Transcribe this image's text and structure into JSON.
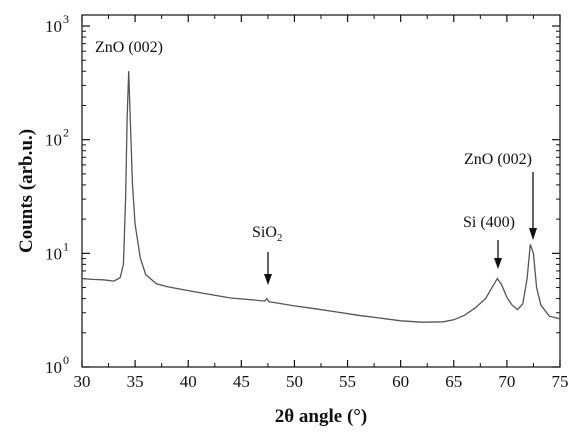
{
  "chart_data": {
    "type": "line",
    "title": "",
    "xlabel": "2θ angle (°)",
    "ylabel": "Counts (arb.u.)",
    "xlim": [
      30,
      75
    ],
    "ylim": [
      1,
      1250
    ],
    "yscale": "log",
    "grid": false,
    "legend": "none",
    "x_ticks": [
      "30",
      "35",
      "40",
      "45",
      "50",
      "55",
      "60",
      "65",
      "70",
      "75"
    ],
    "y_ticks": [
      {
        "base": "10",
        "exp": "0",
        "value": 1
      },
      {
        "base": "10",
        "exp": "1",
        "value": 10
      },
      {
        "base": "10",
        "exp": "2",
        "value": 100
      },
      {
        "base": "10",
        "exp": "3",
        "value": 1000
      }
    ],
    "series": [
      {
        "color": "#555555",
        "points": [
          [
            30,
            6.0
          ],
          [
            31,
            5.9
          ],
          [
            32,
            5.85
          ],
          [
            33,
            5.7
          ],
          [
            33.6,
            6.1
          ],
          [
            33.9,
            8
          ],
          [
            34.1,
            30
          ],
          [
            34.25,
            150
          ],
          [
            34.4,
            400
          ],
          [
            34.55,
            150
          ],
          [
            34.75,
            40
          ],
          [
            35,
            18
          ],
          [
            35.5,
            9
          ],
          [
            36,
            6.5
          ],
          [
            37,
            5.4
          ],
          [
            38,
            5.1
          ],
          [
            40,
            4.7
          ],
          [
            42,
            4.35
          ],
          [
            44,
            4.05
          ],
          [
            46,
            3.9
          ],
          [
            47.2,
            3.8
          ],
          [
            47.4,
            4.0
          ],
          [
            47.6,
            3.75
          ],
          [
            48,
            3.7
          ],
          [
            50,
            3.45
          ],
          [
            52,
            3.25
          ],
          [
            54,
            3.05
          ],
          [
            56,
            2.85
          ],
          [
            58,
            2.7
          ],
          [
            60,
            2.55
          ],
          [
            62,
            2.48
          ],
          [
            64,
            2.5
          ],
          [
            65,
            2.6
          ],
          [
            66,
            2.85
          ],
          [
            67,
            3.3
          ],
          [
            68,
            4.0
          ],
          [
            68.6,
            5.0
          ],
          [
            69.1,
            6.0
          ],
          [
            69.5,
            5.3
          ],
          [
            70,
            4.1
          ],
          [
            70.5,
            3.5
          ],
          [
            71,
            3.2
          ],
          [
            71.5,
            3.6
          ],
          [
            71.9,
            6
          ],
          [
            72.2,
            12
          ],
          [
            72.5,
            10
          ],
          [
            72.8,
            5
          ],
          [
            73.2,
            3.5
          ],
          [
            74,
            2.8
          ],
          [
            75,
            2.65
          ]
        ]
      }
    ],
    "annotations": [
      {
        "text": "ZnO (002)",
        "x": 34.4,
        "arrow": false
      },
      {
        "text": "SiO",
        "sub": "2",
        "x": 47.3,
        "arrow": true
      },
      {
        "text": "Si (400)",
        "x": 69.1,
        "arrow": true
      },
      {
        "text": "ZnO (002)",
        "x": 72.2,
        "arrow": true
      }
    ]
  }
}
